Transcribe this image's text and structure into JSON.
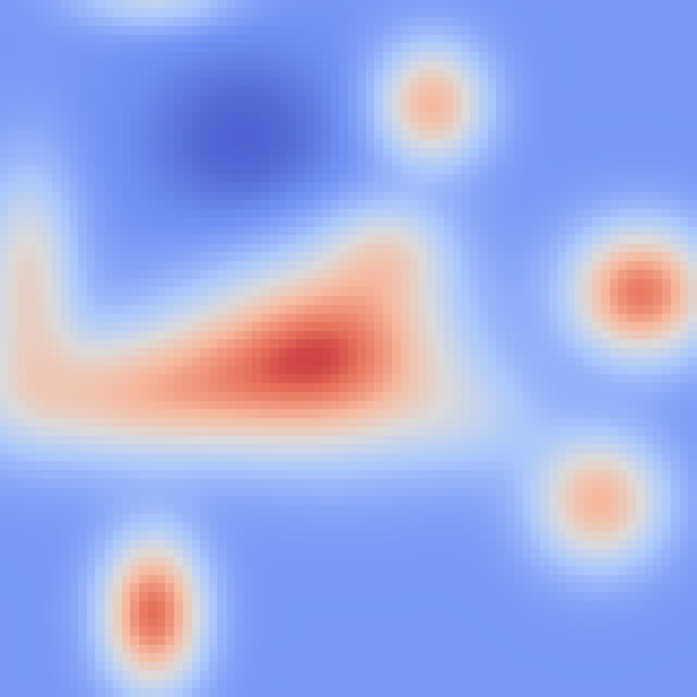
{
  "chart_data": {
    "type": "heatmap",
    "title": "",
    "xlabel": "",
    "ylabel": "",
    "colormap": "coolwarm",
    "colormap_stops": [
      "#3b4cc0",
      "#6f92f3",
      "#aac7fd",
      "#dddcdc",
      "#f7b89c",
      "#e7745b",
      "#b40426"
    ],
    "value_range": [
      -1,
      1
    ],
    "grid": false,
    "x_range": [
      0,
      1
    ],
    "y_range": [
      0,
      1
    ],
    "baseline": -0.62,
    "components": [
      {
        "cx": 0.5,
        "cy": 0.5,
        "sx": 0.11,
        "sy": 0.1,
        "amp": 1.0
      },
      {
        "cx": 0.36,
        "cy": 0.52,
        "sx": 0.12,
        "sy": 0.08,
        "amp": 0.6
      },
      {
        "cx": 0.17,
        "cy": 0.57,
        "sx": 0.15,
        "sy": 0.065,
        "amp": 0.75
      },
      {
        "cx": 0.04,
        "cy": 0.4,
        "sx": 0.05,
        "sy": 0.11,
        "amp": 0.7
      },
      {
        "cx": 0.56,
        "cy": 0.36,
        "sx": 0.06,
        "sy": 0.05,
        "amp": 0.45
      },
      {
        "cx": 0.92,
        "cy": 0.42,
        "sx": 0.07,
        "sy": 0.065,
        "amp": 1.25
      },
      {
        "cx": 0.86,
        "cy": 0.72,
        "sx": 0.065,
        "sy": 0.065,
        "amp": 0.95
      },
      {
        "cx": 0.62,
        "cy": 0.15,
        "sx": 0.055,
        "sy": 0.06,
        "amp": 0.95
      },
      {
        "cx": 0.22,
        "cy": 0.88,
        "sx": 0.05,
        "sy": 0.075,
        "amp": 1.3
      },
      {
        "cx": 0.68,
        "cy": 0.6,
        "sx": 0.08,
        "sy": 0.06,
        "amp": 0.3
      },
      {
        "cx": 0.35,
        "cy": 0.2,
        "sx": 0.1,
        "sy": 0.09,
        "amp": -0.28
      },
      {
        "cx": 0.22,
        "cy": 0.0,
        "sx": 0.08,
        "sy": 0.03,
        "amp": 0.45
      }
    ]
  }
}
